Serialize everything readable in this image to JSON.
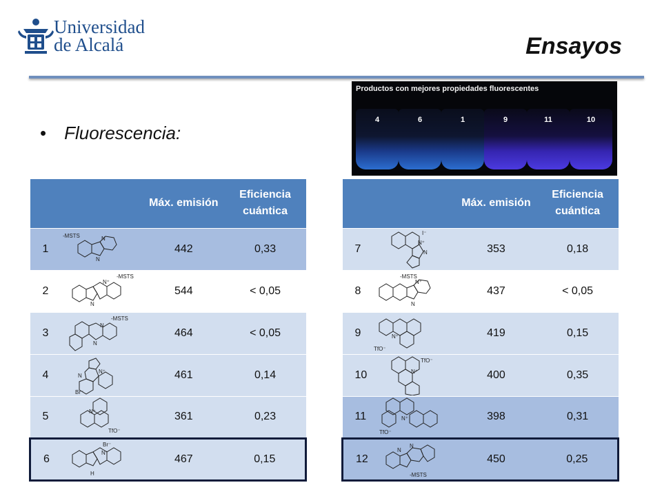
{
  "header": {
    "university_line1": "Universidad",
    "university_line2": "de Alcalá",
    "title": "Ensayos"
  },
  "bullet": {
    "text": "Fluorescencia:"
  },
  "photo": {
    "caption": "Productos con mejores propiedades fluorescentes",
    "vials": [
      {
        "label": "4",
        "glow": "blue"
      },
      {
        "label": "6",
        "glow": "blue"
      },
      {
        "label": "1",
        "glow": "blue"
      },
      {
        "label": "9",
        "glow": "purple"
      },
      {
        "label": "11",
        "glow": "purple"
      },
      {
        "label": "10",
        "glow": "purple"
      }
    ]
  },
  "table_left": {
    "headers": [
      "",
      "",
      "Máx. emisión",
      "Eficiencia cuántica"
    ],
    "rows": [
      {
        "id": "1",
        "emission": "442",
        "efficiency": "0,33",
        "labels": [
          "-MSTS",
          "N",
          "N"
        ]
      },
      {
        "id": "2",
        "emission": "544",
        "efficiency": "< 0,05",
        "labels": [
          "-MSTS",
          "N⁺",
          "N"
        ]
      },
      {
        "id": "3",
        "emission": "464",
        "efficiency": "< 0,05",
        "labels": [
          "-MSTS",
          "N",
          "N"
        ]
      },
      {
        "id": "4",
        "emission": "461",
        "efficiency": "0,14",
        "labels": [
          "N",
          "N⁺",
          "Br⁻"
        ]
      },
      {
        "id": "5",
        "emission": "361",
        "efficiency": "0,23",
        "labels": [
          "N⁺",
          "TfO⁻"
        ]
      },
      {
        "id": "6",
        "emission": "467",
        "efficiency": "0,15",
        "labels": [
          "Br⁻",
          "N⁺",
          "H"
        ]
      }
    ]
  },
  "table_right": {
    "headers": [
      "",
      "",
      "Máx. emisión",
      "Eficiencia cuántica"
    ],
    "rows": [
      {
        "id": "7",
        "emission": "353",
        "efficiency": "0,18",
        "labels": [
          "I⁻",
          "N⁺",
          "N"
        ]
      },
      {
        "id": "8",
        "emission": "437",
        "efficiency": "< 0,05",
        "labels": [
          "-MSTS",
          "N⁺",
          "N"
        ]
      },
      {
        "id": "9",
        "emission": "419",
        "efficiency": "0,15",
        "labels": [
          "N⁺",
          "TfO⁻"
        ]
      },
      {
        "id": "10",
        "emission": "400",
        "efficiency": "0,35",
        "labels": [
          "TfO⁻",
          "N⁺"
        ]
      },
      {
        "id": "11",
        "emission": "398",
        "efficiency": "0,31",
        "labels": [
          "N⁺",
          "TfO⁻"
        ]
      },
      {
        "id": "12",
        "emission": "450",
        "efficiency": "0,25",
        "labels": [
          "N",
          "N",
          "-MSTS"
        ]
      }
    ]
  },
  "colors": {
    "header_blue": "#4f81bd",
    "row_dark": "#a7bde0",
    "row_light": "#d2deef",
    "accent_rule": "#6f8fbd",
    "university_blue": "#1f4e8c"
  }
}
